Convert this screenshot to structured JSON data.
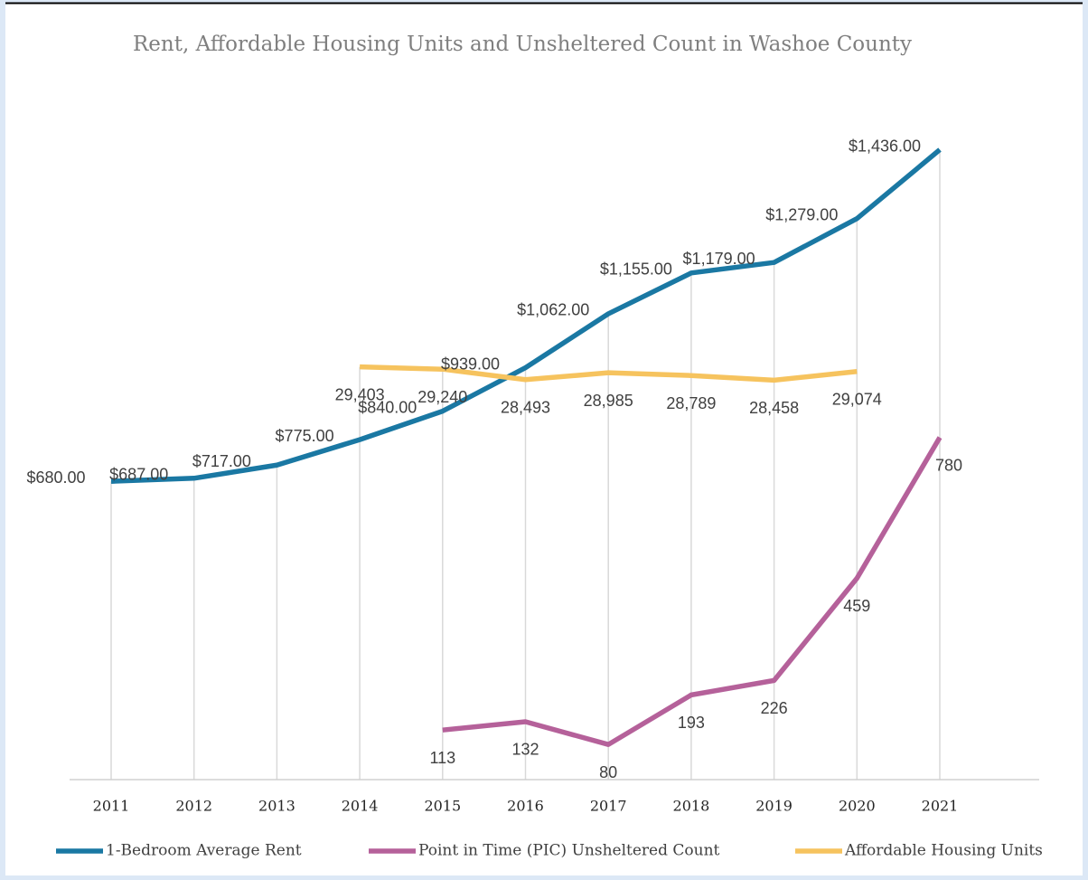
{
  "chart_data": {
    "type": "line",
    "title": "Rent, Affordable Housing Units and Unsheltered Count in Washoe County",
    "categories": [
      "2011",
      "2012",
      "2013",
      "2014",
      "2015",
      "2016",
      "2017",
      "2018",
      "2019",
      "2020",
      "2021"
    ],
    "ylim": [
      0,
      1600
    ],
    "y2lim": [
      0,
      50000
    ],
    "drop_lines": true,
    "series": [
      {
        "name": "1-Bedroom Average Rent",
        "color": "#1a78a3",
        "values": [
          680,
          687,
          717,
          775,
          840,
          939,
          1062,
          1155,
          1179,
          1279,
          1436
        ],
        "value_labels": [
          "$680.00",
          "$687.00",
          "$717.00",
          "$775.00",
          "$840.00",
          "$939.00",
          "$1,062.00",
          "$1,155.00",
          "$1,179.00",
          "$1,279.00",
          "$1,436.00"
        ]
      },
      {
        "name": "Point in Time (PIC) Unsheltered Count",
        "color": "#b5619a",
        "values": [
          null,
          null,
          null,
          null,
          113,
          132,
          80,
          193,
          226,
          459,
          780
        ],
        "value_labels": [
          null,
          null,
          null,
          null,
          "113",
          "132",
          "80",
          "193",
          "226",
          "459",
          "780"
        ]
      },
      {
        "name": "Affordable Housing Units",
        "color": "#f6c35e",
        "axis": "y2",
        "values": [
          null,
          null,
          null,
          29403,
          29240,
          28493,
          28985,
          28789,
          28458,
          29074,
          null
        ],
        "value_labels": [
          null,
          null,
          null,
          "29,403",
          "29,240",
          "28,493",
          "28,985",
          "28,789",
          "28,458",
          "29,074",
          null
        ]
      }
    ]
  }
}
